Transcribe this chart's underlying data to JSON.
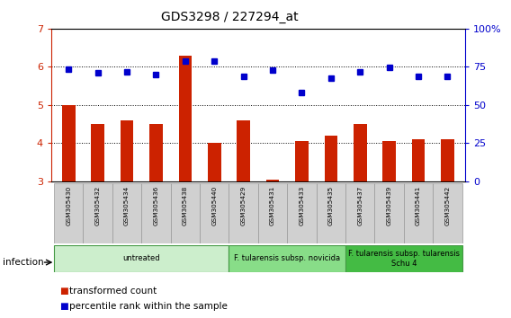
{
  "title": "GDS3298 / 227294_at",
  "samples": [
    "GSM305430",
    "GSM305432",
    "GSM305434",
    "GSM305436",
    "GSM305438",
    "GSM305440",
    "GSM305429",
    "GSM305431",
    "GSM305433",
    "GSM305435",
    "GSM305437",
    "GSM305439",
    "GSM305441",
    "GSM305442"
  ],
  "red_values": [
    5.0,
    4.5,
    4.6,
    4.5,
    6.3,
    4.0,
    4.6,
    3.05,
    4.05,
    4.2,
    4.5,
    4.05,
    4.1,
    4.1
  ],
  "blue_values": [
    73.5,
    71.0,
    71.5,
    70.0,
    79.0,
    78.5,
    68.5,
    73.0,
    58.0,
    67.5,
    71.5,
    74.5,
    68.5,
    68.5
  ],
  "ylim_left": [
    3,
    7
  ],
  "ylim_right": [
    0,
    100
  ],
  "yticks_left": [
    3,
    4,
    5,
    6,
    7
  ],
  "yticks_right": [
    0,
    25,
    50,
    75,
    100
  ],
  "ytick_labels_right": [
    "0",
    "25",
    "50",
    "75",
    "100%"
  ],
  "bar_color": "#cc2200",
  "dot_color": "#0000cc",
  "sample_box_color": "#d0d0d0",
  "groups": [
    {
      "label": "untreated",
      "start": 0,
      "end": 6,
      "color": "#cceecc"
    },
    {
      "label": "F. tularensis subsp. novicida",
      "start": 6,
      "end": 10,
      "color": "#88dd88"
    },
    {
      "label": "F. tularensis subsp. tularensis\nSchu 4",
      "start": 10,
      "end": 14,
      "color": "#44bb44"
    }
  ],
  "infection_label": "infection",
  "legend_red": "transformed count",
  "legend_blue": "percentile rank within the sample",
  "bar_bottom": 3.0,
  "bar_width": 0.45
}
